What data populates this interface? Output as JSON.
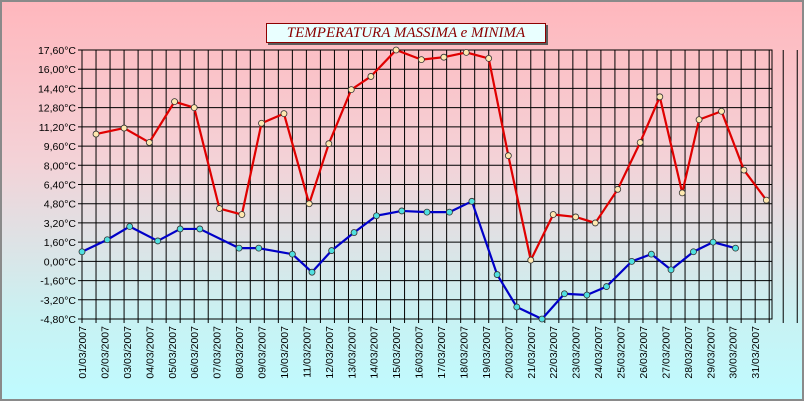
{
  "chart_data": {
    "type": "line",
    "title": "TEMPERATURA MASSIMA e MINIMA",
    "y_ticks": [
      "17,60°C",
      "16,00°C",
      "14,40°C",
      "12,80°C",
      "11,20°C",
      "9,60°C",
      "8,00°C",
      "6,40°C",
      "4,80°C",
      "3,20°C",
      "1,60°C",
      "0,00°C",
      "-1,60°C",
      "-3,20°C",
      "-4,80°C"
    ],
    "ylim": [
      -4.8,
      17.6
    ],
    "grid": true,
    "categories": [
      "01/03/2007",
      "02/03/2007",
      "03/03/2007",
      "04/03/2007",
      "05/03/2007",
      "06/03/2007",
      "07/03/2007",
      "08/03/2007",
      "09/03/2007",
      "10/03/2007",
      "11/03/2007",
      "12/03/2007",
      "13/03/2007",
      "14/03/2007",
      "15/03/2007",
      "16/03/2007",
      "17/03/2007",
      "18/03/2007",
      "19/03/2007",
      "20/03/2007",
      "21/03/2007",
      "22/03/2007",
      "23/03/2007",
      "24/03/2007",
      "25/03/2007",
      "26/03/2007",
      "27/03/2007",
      "28/03/2007",
      "29/03/2007",
      "30/03/2007",
      "31/03/2007"
    ],
    "x": [
      0,
      0.5,
      1,
      1.5,
      2,
      2.5,
      3,
      3.5,
      4,
      4.5,
      5,
      5.5,
      6,
      6.5,
      7,
      7.5,
      8,
      8.5,
      9,
      9.5,
      10,
      10.5,
      11,
      11.5,
      12,
      12.5,
      13,
      13.5,
      14,
      14.5,
      15,
      15.5,
      16,
      16.5,
      17,
      17.5,
      18,
      18.5,
      19,
      19.5,
      20,
      20.5,
      21,
      21.5,
      22,
      22.5,
      23,
      23.5,
      24,
      24.5,
      25,
      25.5,
      26,
      26.5,
      27,
      27.5,
      28,
      28.5,
      29,
      29.5,
      30,
      30.5
    ],
    "series": [
      {
        "color": "#e00000",
        "marker_color": "#ffe8b0",
        "points": [
          [
            0.5,
            10.6
          ],
          [
            1.5,
            11.1
          ],
          [
            2.4,
            9.9
          ],
          [
            3.3,
            13.3
          ],
          [
            4.0,
            12.8
          ],
          [
            4.9,
            4.4
          ],
          [
            5.7,
            3.9
          ],
          [
            6.4,
            11.5
          ],
          [
            7.2,
            12.3
          ],
          [
            8.1,
            4.8
          ],
          [
            8.8,
            9.8
          ],
          [
            9.6,
            14.3
          ],
          [
            10.3,
            15.4
          ],
          [
            11.2,
            17.6
          ],
          [
            12.1,
            16.8
          ],
          [
            12.9,
            17.0
          ],
          [
            13.7,
            17.4
          ],
          [
            14.5,
            16.9
          ],
          [
            15.2,
            8.8
          ],
          [
            16.0,
            0.1
          ],
          [
            16.8,
            3.9
          ],
          [
            17.6,
            3.7
          ],
          [
            18.3,
            3.2
          ],
          [
            19.1,
            6.0
          ],
          [
            19.9,
            9.9
          ],
          [
            20.6,
            13.7
          ],
          [
            21.4,
            5.7
          ],
          [
            22.0,
            11.8
          ],
          [
            22.8,
            12.5
          ],
          [
            23.6,
            7.6
          ],
          [
            24.4,
            5.1
          ]
        ]
      },
      {
        "color": "#0000c8",
        "marker_color": "#50e0e0",
        "points": [
          [
            0,
            0.8
          ],
          [
            0.9,
            1.8
          ],
          [
            1.7,
            2.9
          ],
          [
            2.7,
            1.7
          ],
          [
            3.5,
            2.7
          ],
          [
            4.2,
            2.7
          ],
          [
            5.6,
            1.1
          ],
          [
            6.3,
            1.1
          ],
          [
            7.5,
            0.6
          ],
          [
            8.2,
            -0.9
          ],
          [
            8.9,
            0.9
          ],
          [
            9.7,
            2.4
          ],
          [
            10.5,
            3.8
          ],
          [
            11.4,
            4.2
          ],
          [
            12.3,
            4.1
          ],
          [
            13.1,
            4.1
          ],
          [
            13.9,
            5.0
          ],
          [
            14.8,
            -1.1
          ],
          [
            15.5,
            -3.8
          ],
          [
            16.4,
            -4.8
          ],
          [
            17.2,
            -2.7
          ],
          [
            18.0,
            -2.8
          ],
          [
            18.7,
            -2.1
          ],
          [
            19.6,
            0.0
          ],
          [
            20.3,
            0.6
          ],
          [
            21.0,
            -0.7
          ],
          [
            21.8,
            0.8
          ],
          [
            22.5,
            1.6
          ],
          [
            23.3,
            1.1
          ]
        ]
      }
    ]
  }
}
